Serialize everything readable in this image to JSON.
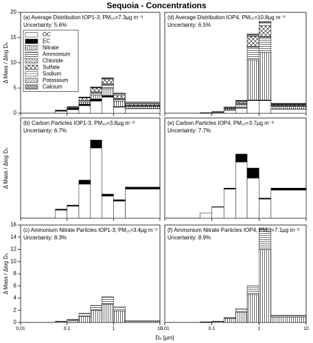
{
  "title": "Sequoia - Concentrations",
  "x_label": "Dₚ [µm]",
  "chart_data": [
    {
      "type": "stacked-histogram",
      "label": "(a) Average Distribution IOP1-3, PM₁₀=7.3µg m⁻³",
      "uncertainty": "Uncertainty: 5.6%",
      "y_label": "Δ Mass / Δlog Dₚ",
      "log_x": true,
      "xlim": [
        0.01,
        10
      ],
      "xticks": [
        0.01,
        0.1,
        1,
        10
      ],
      "ylim": [
        0,
        20
      ],
      "yticks": [
        0,
        5,
        10,
        15,
        20
      ],
      "legend": "upper left",
      "bins": [
        0.056,
        0.1,
        0.18,
        0.32,
        0.56,
        1.0,
        1.8,
        10
      ],
      "series": [
        {
          "name": "OC",
          "pattern": "none",
          "values": [
            0.4,
            0.7,
            1.5,
            2.4,
            3.2,
            1.2,
            0.9
          ]
        },
        {
          "name": "EC",
          "pattern": "solid",
          "values": [
            0.05,
            0.15,
            0.3,
            0.4,
            0.3,
            0.1,
            0.05
          ]
        },
        {
          "name": "Nitrate",
          "pattern": "vertical",
          "values": [
            0.05,
            0.1,
            0.4,
            0.8,
            1.4,
            1.1,
            0.4
          ]
        },
        {
          "name": "Ammonium",
          "pattern": "horizontal",
          "values": [
            0.02,
            0.1,
            0.3,
            0.5,
            0.8,
            0.4,
            0.1
          ]
        },
        {
          "name": "Chloride",
          "pattern": "backslash",
          "values": [
            0,
            0,
            0.05,
            0.1,
            0.1,
            0.1,
            0.1
          ]
        },
        {
          "name": "Sulfate",
          "pattern": "cross",
          "values": [
            0.05,
            0.15,
            0.5,
            0.8,
            1.0,
            0.6,
            0.2
          ]
        },
        {
          "name": "Sodium",
          "pattern": "sparse",
          "values": [
            0,
            0,
            0.05,
            0.1,
            0.1,
            0.3,
            0.2
          ]
        },
        {
          "name": "Potassium",
          "pattern": "slash",
          "values": [
            0.02,
            0.05,
            0.05,
            0.05,
            0.05,
            0.05,
            0.05
          ]
        },
        {
          "name": "Calcium",
          "pattern": "grid",
          "values": [
            0.01,
            0.05,
            0.05,
            0.05,
            0.05,
            0.15,
            0.2
          ]
        }
      ]
    },
    {
      "type": "stacked-histogram",
      "label": "(b) Carbon Particles IOP1-3, PM₁₀=3.8µg m⁻³",
      "uncertainty": "Uncertainty: 6.7%",
      "y_label": "Δ Mass / Δlog Dₚ",
      "log_x": true,
      "xlim": [
        0.01,
        10
      ],
      "xticks": [
        0.01,
        0.1,
        1,
        10
      ],
      "ylim": [
        0,
        5
      ],
      "bins": [
        0.056,
        0.1,
        0.18,
        0.32,
        0.56,
        1.0,
        1.8,
        10
      ],
      "series": [
        {
          "name": "OC",
          "pattern": "none",
          "values": [
            0.4,
            0.6,
            1.7,
            3.5,
            1.1,
            0.85,
            1.45
          ]
        },
        {
          "name": "EC",
          "pattern": "solid",
          "values": [
            0.05,
            0.05,
            0.2,
            0.4,
            0.1,
            0.07,
            0.1
          ]
        }
      ]
    },
    {
      "type": "stacked-histogram",
      "label": "(c) Ammonium Nitrate Particles IOP1-3, PM₁₀=3.4µg m⁻³",
      "uncertainty": "Uncertainty: 8.3%",
      "y_label": "Δ Mass / Δlog Dₚ",
      "log_x": true,
      "xlim": [
        0.01,
        10
      ],
      "xticks": [
        0.01,
        0.1,
        1,
        10
      ],
      "xtick_labels": true,
      "ylim": [
        0,
        16
      ],
      "yticks": [
        0,
        2,
        4,
        6,
        8,
        10,
        12,
        14,
        16
      ],
      "bins": [
        0.056,
        0.1,
        0.18,
        0.32,
        0.56,
        1.0,
        1.8,
        10
      ],
      "series": [
        {
          "name": "Nitrate",
          "pattern": "vertical",
          "values": [
            0.15,
            0.35,
            1.0,
            2.0,
            3.0,
            1.9,
            0.2
          ]
        },
        {
          "name": "Ammonium",
          "pattern": "horizontal",
          "values": [
            0.05,
            0.15,
            0.5,
            0.8,
            1.2,
            0.7,
            0.1
          ]
        }
      ]
    },
    {
      "type": "stacked-histogram",
      "label": "(d) Average Distribution IOP4, PM₁₀=10.8µg m⁻³",
      "uncertainty": "Uncertainty: 6.5%",
      "log_x": true,
      "xlim": [
        0.01,
        10
      ],
      "xticks": [
        0.01,
        0.1,
        1,
        10
      ],
      "ylim": [
        0,
        20
      ],
      "bins": [
        0.056,
        0.1,
        0.18,
        0.32,
        0.56,
        1.0,
        1.8,
        10
      ],
      "series": [
        {
          "name": "OC",
          "pattern": "none",
          "values": [
            0.05,
            0.15,
            0.6,
            1.0,
            2.5,
            2.5,
            0.8
          ]
        },
        {
          "name": "EC",
          "pattern": "solid",
          "values": [
            0.01,
            0.02,
            0.05,
            0.1,
            0.1,
            0.1,
            0.05
          ]
        },
        {
          "name": "Nitrate",
          "pattern": "vertical",
          "values": [
            0.02,
            0.05,
            0.2,
            0.6,
            8.0,
            9.5,
            0.5
          ]
        },
        {
          "name": "Ammonium",
          "pattern": "horizontal",
          "values": [
            0.01,
            0.03,
            0.1,
            0.3,
            2.5,
            3.0,
            0.15
          ]
        },
        {
          "name": "Chloride",
          "pattern": "backslash",
          "values": [
            0,
            0,
            0.02,
            0.05,
            0.1,
            0.1,
            0.05
          ]
        },
        {
          "name": "Sulfate",
          "pattern": "cross",
          "values": [
            0.01,
            0.03,
            0.2,
            0.3,
            2.0,
            2.2,
            0.15
          ]
        },
        {
          "name": "Sodium",
          "pattern": "sparse",
          "values": [
            0,
            0,
            0.02,
            0.1,
            0.3,
            0.5,
            0.1
          ]
        },
        {
          "name": "Potassium",
          "pattern": "slash",
          "values": [
            0,
            0.01,
            0.02,
            0.03,
            0.1,
            0.1,
            0.05
          ]
        },
        {
          "name": "Calcium",
          "pattern": "grid",
          "values": [
            0,
            0.01,
            0.02,
            0.05,
            0.1,
            0.2,
            0.1
          ]
        }
      ]
    },
    {
      "type": "stacked-histogram",
      "label": "(e) Carbon Particles IOP4, PM₁₀=3.7µg m⁻³",
      "uncertainty": "Uncertainty: 7.7%",
      "log_x": true,
      "xlim": [
        0.01,
        10
      ],
      "xticks": [
        0.01,
        0.1,
        1,
        10
      ],
      "ylim": [
        0,
        5
      ],
      "bins": [
        0.056,
        0.1,
        0.18,
        0.32,
        0.56,
        1.0,
        1.8,
        10
      ],
      "series": [
        {
          "name": "OC",
          "pattern": "none",
          "values": [
            0.25,
            0.55,
            1.45,
            2.8,
            2.0,
            0.95,
            1.4
          ]
        },
        {
          "name": "EC",
          "pattern": "solid",
          "values": [
            0,
            0.02,
            0.05,
            0.4,
            0.5,
            0.05,
            0.1
          ]
        }
      ]
    },
    {
      "type": "stacked-histogram",
      "label": "(f) Ammonium Nitrate Particles IOP4, PM₁₀=7.1µg m⁻³",
      "uncertainty": "Uncertainty: 8.9%",
      "log_x": true,
      "xlim": [
        0.01,
        10
      ],
      "xticks": [
        0.01,
        0.1,
        1,
        10
      ],
      "xtick_labels": true,
      "ylim": [
        0,
        16
      ],
      "bins": [
        0.056,
        0.1,
        0.18,
        0.32,
        0.56,
        1.0,
        1.8,
        10
      ],
      "series": [
        {
          "name": "Nitrate",
          "pattern": "vertical",
          "values": [
            0.07,
            0.15,
            0.6,
            1.7,
            4.6,
            12,
            0.9
          ]
        },
        {
          "name": "Ammonium",
          "pattern": "horizontal",
          "values": [
            0.03,
            0.05,
            0.2,
            0.6,
            1.4,
            3.5,
            0.3
          ]
        }
      ]
    }
  ]
}
